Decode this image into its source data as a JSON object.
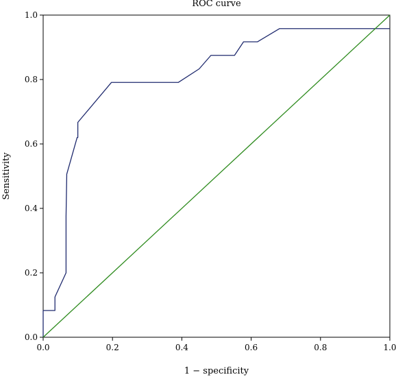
{
  "chart_data": {
    "type": "line",
    "title": "ROC curve",
    "xlabel": "1 − specificity",
    "ylabel": "Sensitivity",
    "xlim": [
      0,
      1
    ],
    "ylim": [
      0,
      1
    ],
    "xticks": [
      "0.0",
      "0.2",
      "0.4",
      "0.6",
      "0.8",
      "1.0"
    ],
    "yticks": [
      "0.0",
      "0.2",
      "0.4",
      "0.6",
      "0.8",
      "1.0"
    ],
    "grid": false,
    "series": [
      {
        "color": "#1f2a6e",
        "x": [
          0,
          0,
          0.034,
          0.034,
          0.066,
          0.066,
          0.068,
          0.068,
          0.098,
          0.1,
          0.1,
          0.197,
          0.39,
          0.45,
          0.484,
          0.552,
          0.578,
          0.618,
          0.682,
          1.0
        ],
        "y": [
          0,
          0.083,
          0.083,
          0.125,
          0.2,
          0.375,
          0.5,
          0.506,
          0.62,
          0.62,
          0.667,
          0.791,
          0.791,
          0.833,
          0.875,
          0.875,
          0.917,
          0.917,
          0.958,
          0.958
        ]
      },
      {
        "color": "#2e8b1e",
        "x": [
          0,
          1
        ],
        "y": [
          0,
          1
        ]
      }
    ]
  }
}
